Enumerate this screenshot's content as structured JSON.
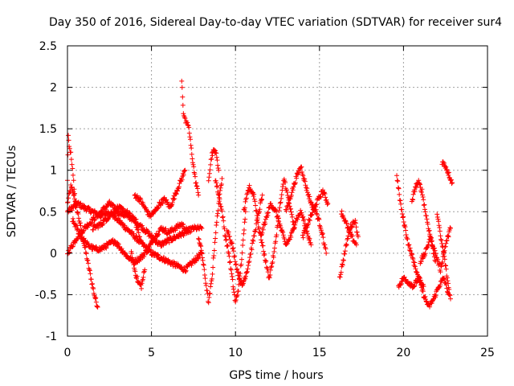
{
  "chart_data": {
    "type": "scatter",
    "title": "Day 350 of 2016, Sidereal Day-to-day VTEC variation (SDTVAR) for receiver sur4",
    "xlabel": "GPS time / hours",
    "ylabel": "SDTVAR / TECUs",
    "xlim": [
      0,
      25
    ],
    "ylim": [
      -1,
      2.5
    ],
    "xticks": [
      0,
      5,
      10,
      15,
      20,
      25
    ],
    "xtick_labels": [
      "0",
      "5",
      "10",
      "15",
      "20",
      "25"
    ],
    "yticks": [
      -1,
      -0.5,
      0,
      0.5,
      1,
      1.5,
      2,
      2.5
    ],
    "ytick_labels": [
      "-1",
      "-0.5",
      "0",
      "0.5",
      "1",
      "1.5",
      "2",
      "2.5"
    ],
    "grid": true,
    "marker": "+",
    "series": [
      {
        "name": "SDTVAR",
        "color": "#ff0000",
        "tracks": [
          {
            "x": [
              0.0,
              0.2,
              0.4,
              0.7,
              1.0,
              1.3,
              1.6,
              1.8
            ],
            "y": [
              0.6,
              0.8,
              0.7,
              0.4,
              0.1,
              -0.2,
              -0.5,
              -0.65
            ]
          },
          {
            "x": [
              0.0,
              0.05,
              0.1,
              0.2,
              0.3,
              0.4,
              0.5
            ],
            "y": [
              0.9,
              1.45,
              1.3,
              1.2,
              1.0,
              0.8,
              0.55
            ]
          },
          {
            "x": [
              0.0,
              0.3,
              0.6,
              1.0,
              1.5,
              2.0,
              2.5,
              3.0,
              3.5,
              4.0,
              4.5,
              5.0,
              5.5,
              6.0,
              6.5,
              7.0,
              7.5,
              8.0
            ],
            "y": [
              0.5,
              0.55,
              0.6,
              0.55,
              0.5,
              0.45,
              0.5,
              0.4,
              0.3,
              0.2,
              0.1,
              0.0,
              -0.05,
              -0.1,
              -0.15,
              -0.2,
              -0.1,
              0.0
            ]
          },
          {
            "x": [
              0.0,
              0.3,
              0.6,
              1.0,
              1.5,
              2.0,
              2.5,
              3.0,
              3.5,
              4.0,
              4.5,
              5.0,
              5.5,
              6.0,
              6.5,
              7.0,
              7.5,
              8.0
            ],
            "y": [
              0.0,
              0.1,
              0.2,
              0.3,
              0.4,
              0.5,
              0.6,
              0.5,
              0.45,
              0.4,
              0.3,
              0.2,
              0.1,
              0.15,
              0.2,
              0.25,
              0.3,
              0.3
            ]
          },
          {
            "x": [
              0.3,
              0.8,
              1.2,
              1.6,
              2.0,
              2.4,
              2.8,
              3.2,
              3.6,
              4.0,
              4.4,
              4.8,
              5.2,
              5.6,
              6.0,
              6.4,
              6.8,
              7.2
            ],
            "y": [
              0.4,
              0.2,
              0.1,
              0.05,
              0.05,
              0.1,
              0.15,
              0.05,
              -0.05,
              -0.1,
              -0.05,
              0.05,
              0.2,
              0.3,
              0.25,
              0.3,
              0.35,
              0.25
            ]
          },
          {
            "x": [
              1.5,
              2.0,
              2.5,
              3.0,
              3.5,
              4.0,
              4.3
            ],
            "y": [
              0.3,
              0.35,
              0.45,
              0.55,
              0.5,
              0.4,
              0.2
            ]
          },
          {
            "x": [
              3.8,
              4.0,
              4.2,
              4.4,
              4.6
            ],
            "y": [
              0.0,
              -0.2,
              -0.35,
              -0.4,
              -0.2
            ]
          },
          {
            "x": [
              4.0,
              4.3,
              4.6,
              4.9,
              5.2,
              5.5,
              5.8,
              6.1,
              6.4,
              6.7,
              7.0
            ],
            "y": [
              0.7,
              0.65,
              0.55,
              0.45,
              0.5,
              0.6,
              0.65,
              0.55,
              0.7,
              0.85,
              1.0
            ]
          },
          {
            "x": [
              6.8,
              6.85,
              6.9,
              7.0,
              7.1,
              7.2,
              7.4,
              7.6,
              7.8
            ],
            "y": [
              2.1,
              1.9,
              1.7,
              1.6,
              1.55,
              1.55,
              1.2,
              0.9,
              0.7
            ]
          },
          {
            "x": [
              7.8,
              8.0,
              8.2,
              8.4,
              8.6,
              8.8,
              9.0,
              9.2
            ],
            "y": [
              0.2,
              0.0,
              -0.3,
              -0.6,
              -0.3,
              0.2,
              0.6,
              0.9
            ]
          },
          {
            "x": [
              8.4,
              8.6,
              8.8,
              9.0
            ],
            "y": [
              0.9,
              1.2,
              1.25,
              1.0
            ]
          },
          {
            "x": [
              8.8,
              9.0,
              9.2,
              9.4,
              9.6,
              9.8,
              10.0,
              10.2,
              10.4,
              10.6
            ],
            "y": [
              0.9,
              0.7,
              0.5,
              0.2,
              0.0,
              -0.3,
              -0.6,
              -0.4,
              0.0,
              0.5
            ]
          },
          {
            "x": [
              9.5,
              9.8,
              10.1,
              10.4,
              10.7,
              11.0,
              11.3,
              11.6
            ],
            "y": [
              0.3,
              0.1,
              -0.2,
              -0.4,
              -0.2,
              0.1,
              0.4,
              0.7
            ]
          },
          {
            "x": [
              10.5,
              10.8,
              11.1,
              11.4,
              11.7,
              12.0,
              12.3,
              12.6,
              12.9,
              13.2,
              13.5
            ],
            "y": [
              0.5,
              0.8,
              0.7,
              0.3,
              0.0,
              -0.3,
              0.0,
              0.5,
              0.9,
              0.6,
              0.3
            ]
          },
          {
            "x": [
              11.5,
              11.8,
              12.1,
              12.4,
              12.7,
              13.0,
              13.3,
              13.6,
              13.9,
              14.2,
              14.5
            ],
            "y": [
              0.2,
              0.4,
              0.6,
              0.5,
              0.3,
              0.1,
              0.2,
              0.4,
              0.5,
              0.3,
              0.1
            ]
          },
          {
            "x": [
              13.0,
              13.3,
              13.6,
              13.9,
              14.2,
              14.5,
              14.8,
              15.1,
              15.4
            ],
            "y": [
              0.5,
              0.7,
              0.9,
              1.05,
              0.8,
              0.6,
              0.5,
              0.3,
              0.0
            ]
          },
          {
            "x": [
              14.0,
              14.4,
              14.8,
              15.2,
              15.5
            ],
            "y": [
              0.2,
              0.4,
              0.6,
              0.75,
              0.6
            ]
          },
          {
            "x": [
              16.2,
              16.5,
              16.8,
              17.1,
              17.3
            ],
            "y": [
              -0.3,
              0.0,
              0.3,
              0.4,
              0.2
            ]
          },
          {
            "x": [
              16.3,
              16.6,
              16.9,
              17.2
            ],
            "y": [
              0.5,
              0.35,
              0.2,
              0.1
            ]
          },
          {
            "x": [
              19.6,
              19.75,
              19.9,
              20.1,
              20.3,
              20.6,
              20.9,
              21.2
            ],
            "y": [
              0.95,
              0.7,
              0.5,
              0.3,
              0.1,
              -0.1,
              -0.3,
              -0.4
            ]
          },
          {
            "x": [
              19.7,
              20.0,
              20.3,
              20.6,
              20.9,
              21.2,
              21.5,
              21.8,
              22.1,
              22.4,
              22.7
            ],
            "y": [
              -0.4,
              -0.3,
              -0.35,
              -0.4,
              -0.3,
              -0.5,
              -0.65,
              -0.55,
              -0.4,
              -0.3,
              -0.5
            ]
          },
          {
            "x": [
              20.5,
              20.7,
              20.9,
              21.1,
              21.3,
              21.6,
              21.9
            ],
            "y": [
              0.6,
              0.8,
              0.85,
              0.75,
              0.5,
              0.2,
              -0.1
            ]
          },
          {
            "x": [
              21.0,
              21.3,
              21.6,
              21.9,
              22.2,
              22.5,
              22.8
            ],
            "y": [
              -0.1,
              0.0,
              0.2,
              0.0,
              -0.2,
              0.1,
              0.3
            ]
          },
          {
            "x": [
              22.0,
              22.2,
              22.4,
              22.6,
              22.8
            ],
            "y": [
              0.5,
              0.2,
              0.0,
              -0.3,
              -0.55
            ]
          },
          {
            "x": [
              22.3,
              22.5,
              22.7,
              22.9
            ],
            "y": [
              1.1,
              1.05,
              0.95,
              0.85
            ]
          }
        ]
      }
    ]
  }
}
